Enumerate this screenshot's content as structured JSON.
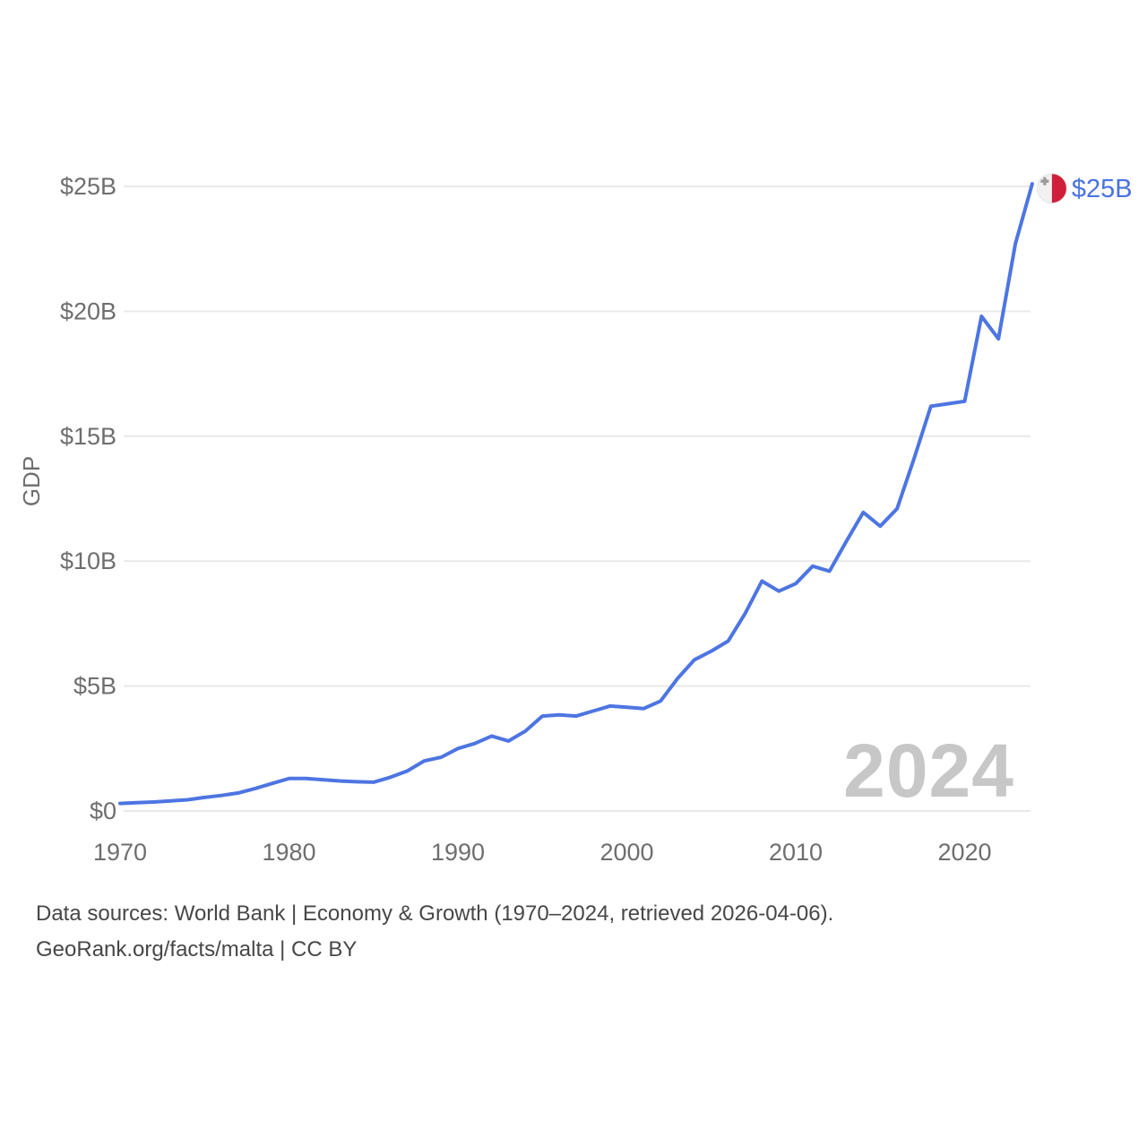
{
  "chart_data": {
    "type": "line",
    "title": "",
    "country": "Malta",
    "ylabel": "GDP",
    "unit": "billions USD",
    "x": [
      1970,
      1971,
      1972,
      1973,
      1974,
      1975,
      1976,
      1977,
      1978,
      1979,
      1980,
      1981,
      1982,
      1983,
      1984,
      1985,
      1986,
      1987,
      1988,
      1989,
      1990,
      1991,
      1992,
      1993,
      1994,
      1995,
      1996,
      1997,
      1998,
      1999,
      2000,
      2001,
      2002,
      2003,
      2004,
      2005,
      2006,
      2007,
      2008,
      2009,
      2010,
      2011,
      2012,
      2013,
      2014,
      2015,
      2016,
      2017,
      2018,
      2019,
      2020,
      2021,
      2022,
      2023,
      2024
    ],
    "values": [
      0.3,
      0.33,
      0.36,
      0.4,
      0.45,
      0.54,
      0.62,
      0.72,
      0.9,
      1.1,
      1.3,
      1.3,
      1.25,
      1.2,
      1.17,
      1.15,
      1.35,
      1.6,
      2.0,
      2.15,
      2.5,
      2.7,
      3.0,
      2.8,
      3.2,
      3.8,
      3.85,
      3.8,
      4.0,
      4.2,
      4.15,
      4.1,
      4.4,
      5.3,
      6.05,
      6.4,
      6.8,
      7.9,
      9.2,
      8.8,
      9.1,
      9.8,
      9.6,
      10.8,
      11.95,
      11.4,
      12.1,
      14.1,
      16.2,
      16.3,
      16.4,
      19.8,
      18.9,
      22.7,
      25.1
    ],
    "ylim": [
      0,
      25
    ],
    "ytick_values": [
      0,
      5,
      10,
      15,
      20,
      25
    ],
    "ytick_labels": [
      "$0",
      "$5B",
      "$10B",
      "$15B",
      "$20B",
      "$25B"
    ],
    "xtick_values": [
      1970,
      1980,
      1990,
      2000,
      2010,
      2020
    ],
    "grid": "horizontal-only",
    "legend": "none",
    "end_label": "$25B",
    "end_marker_icon": "malta-flag-icon",
    "watermark": "2024",
    "line_color": "#4d75e2",
    "label_color": "#4a72e0",
    "flag_red": "#d01f3b",
    "flag_white": "#f1f1f1",
    "flag_cross_gray": "#9a9a9a"
  },
  "footer": {
    "line1": "Data sources: World Bank | Economy & Growth (1970–2024, retrieved 2026-04-06).",
    "line2": "GeoRank.org/facts/malta | CC BY"
  }
}
